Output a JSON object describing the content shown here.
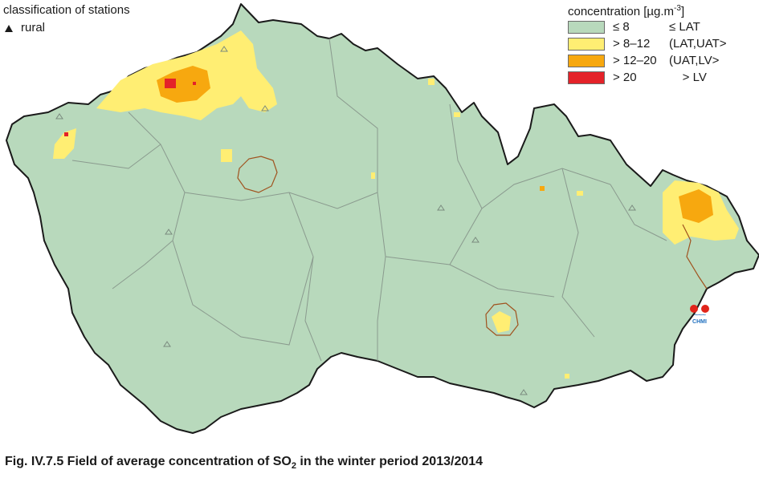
{
  "station_legend": {
    "title": "classification of stations",
    "items": [
      {
        "label": "rural",
        "symbol": "triangle-icon"
      }
    ]
  },
  "concentration_legend": {
    "title": "concentration [µg.m",
    "title_exp": "-3",
    "title_end": "]",
    "classes": [
      {
        "range": "≤ 8",
        "limit": "≤ LAT",
        "color": "#b8d9bc"
      },
      {
        "range": "> 8–12",
        "limit": "(LAT,UAT>",
        "color": "#ffee73"
      },
      {
        "range": "> 12–20",
        "limit": "(UAT,LV>",
        "color": "#f7a80f"
      },
      {
        "range": "> 20",
        "limit": "    > LV",
        "color": "#e42229"
      }
    ]
  },
  "logo": {
    "text": "CHMI",
    "dot_color": "#e1251b",
    "wave_color": "#1f6fbf"
  },
  "caption": {
    "prefix": "Fig. IV.7.5  Field of average concentration of SO",
    "subscript": "2",
    "suffix": " in the winter period 2013/2014"
  },
  "colors": {
    "country_fill": "#b8d9bc",
    "border": "#1a1a1a",
    "region_lines": "#8a9a8e",
    "city_outline": "#a0521e"
  }
}
